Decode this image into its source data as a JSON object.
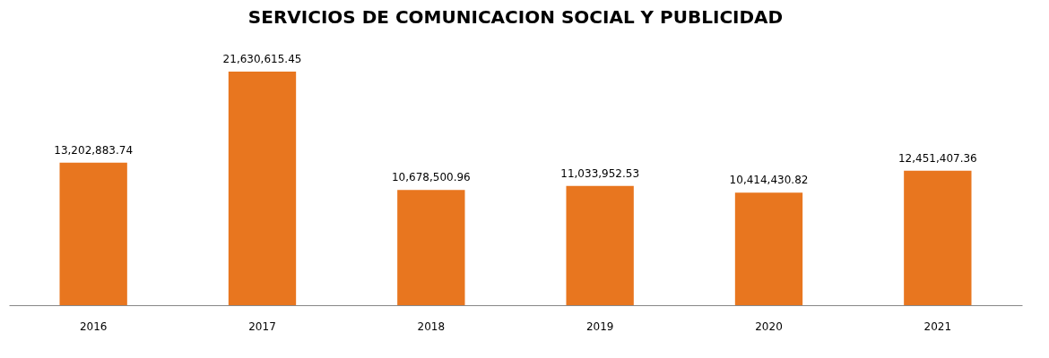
{
  "chart_data": {
    "type": "bar",
    "title": "SERVICIOS DE COMUNICACION SOCIAL Y PUBLICIDAD",
    "categories": [
      "2016",
      "2017",
      "2018",
      "2019",
      "2020",
      "2021"
    ],
    "values": [
      13202883.74,
      21630615.45,
      10678500.96,
      11033952.53,
      10414430.82,
      12451407.36
    ],
    "color": "#e8761f",
    "value_labels": [
      "13,202,883.74",
      "21,630,615.45",
      "10,678,500.96",
      "11,033,952.53",
      "10,414,430.82",
      "12,451,407.36"
    ]
  }
}
